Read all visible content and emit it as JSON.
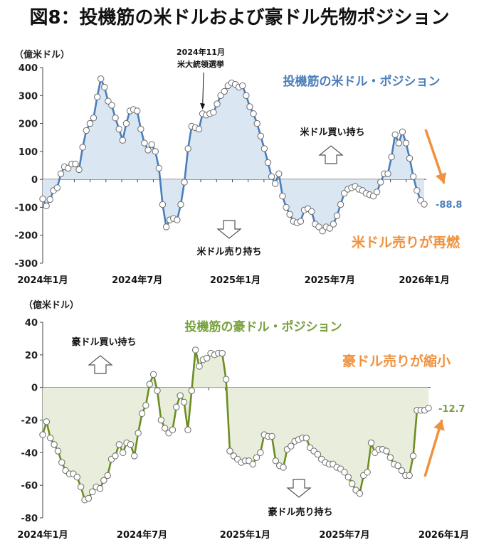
{
  "page_title": "図8：投機筋の米ドルおよび豪ドル先物ポジション",
  "colors": {
    "usd_line": "#4a7ebb",
    "usd_fill": "#dbe6f3",
    "usd_text": "#4a7ebb",
    "aud_line": "#6b8e23",
    "aud_fill": "#e8eedb",
    "aud_text": "#77a03c",
    "accent": "#f0913e"
  },
  "chart_data": [
    {
      "type": "area",
      "title": "投機筋の米ドル・ポジション",
      "ylabel": "（億米ドル）",
      "ylim": [
        -300,
        400
      ],
      "yticks": [
        "400",
        "300",
        "200",
        "100",
        "0",
        "-100",
        "-200",
        "-300"
      ],
      "ytick_values": [
        400,
        300,
        200,
        100,
        0,
        -100,
        -200,
        -300
      ],
      "xticks": [
        "2024年1月",
        "2024年7月",
        "2025年1月",
        "2025年7月",
        "2026年1月"
      ],
      "xtick_positions": [
        0,
        26,
        53,
        79,
        105
      ],
      "grid": false,
      "annotation_event": [
        "2024年11月",
        "米大統領選挙"
      ],
      "annotation_event_index": 44,
      "label_long": "米ドル買い持ち",
      "label_short": "米ドル売り持ち",
      "label_trend": "米ドル売りが再燃",
      "last_value_label": "-88.8",
      "series": [
        {
          "name": "投機筋の米ドル・ポジション",
          "values": [
            -70,
            -95,
            -72,
            -40,
            -30,
            20,
            45,
            40,
            55,
            55,
            35,
            115,
            175,
            200,
            220,
            295,
            360,
            330,
            280,
            265,
            220,
            180,
            140,
            200,
            245,
            250,
            245,
            180,
            130,
            105,
            125,
            100,
            40,
            -90,
            -170,
            -145,
            -140,
            -145,
            -90,
            -10,
            110,
            190,
            185,
            180,
            235,
            230,
            235,
            240,
            270,
            300,
            315,
            335,
            345,
            340,
            330,
            335,
            300,
            260,
            235,
            200,
            155,
            110,
            60,
            10,
            -15,
            20,
            -60,
            -100,
            -125,
            -150,
            -155,
            -150,
            -110,
            -105,
            -115,
            -160,
            -170,
            -185,
            -170,
            -175,
            -160,
            -130,
            -90,
            -50,
            -35,
            -30,
            -25,
            -35,
            -40,
            -50,
            -55,
            -60,
            -45,
            -10,
            20,
            20,
            80,
            160,
            130,
            170,
            130,
            75,
            10,
            -40,
            -75,
            -88.8
          ]
        }
      ]
    },
    {
      "type": "area",
      "title": "投機筋の豪ドル・ポジション",
      "ylabel": "（億米ドル）",
      "ylim": [
        -80,
        40
      ],
      "yticks": [
        "40",
        "20",
        "0",
        "-20",
        "-40",
        "-60",
        "-80"
      ],
      "ytick_values": [
        40,
        20,
        0,
        -20,
        -40,
        -60,
        -80
      ],
      "xticks": [
        "2024年1月",
        "2024年7月",
        "2025年1月",
        "2025年7月",
        "2026年1月"
      ],
      "xtick_positions": [
        0,
        26,
        53,
        79,
        105
      ],
      "grid": false,
      "label_long": "豪ドル買い持ち",
      "label_short": "豪ドル売り持ち",
      "label_trend": "豪ドル売りが縮小",
      "last_value_label": "-12.7",
      "series": [
        {
          "name": "投機筋の豪ドル・ポジション",
          "values": [
            -29,
            -21,
            -31,
            -35,
            -39,
            -46,
            -51,
            -53,
            -53,
            -55,
            -61,
            -69,
            -68,
            -64,
            -61,
            -62,
            -57,
            -54,
            -44,
            -42,
            -35,
            -40,
            -34,
            -35,
            -42,
            -28,
            -16,
            -11,
            2,
            8,
            -2,
            -20,
            -25,
            -28,
            -26,
            -12,
            -5,
            -9,
            -26,
            -2,
            23,
            13,
            17,
            18,
            21,
            20,
            21,
            21,
            5,
            -39,
            -42,
            -44,
            -46,
            -45,
            -45,
            -47,
            -43,
            -40,
            -29,
            -30,
            -30,
            -45,
            -48,
            -49,
            -38,
            -36,
            -33,
            -32,
            -31,
            -31,
            -37,
            -39,
            -41,
            -44,
            -46,
            -47,
            -47,
            -49,
            -50,
            -52,
            -55,
            -59,
            -63,
            -65,
            -54,
            -52,
            -34,
            -40,
            -38,
            -38,
            -39,
            -43,
            -47,
            -48,
            -51,
            -54,
            -54,
            -42,
            -14,
            -14,
            -14,
            -12.7
          ]
        }
      ]
    }
  ]
}
